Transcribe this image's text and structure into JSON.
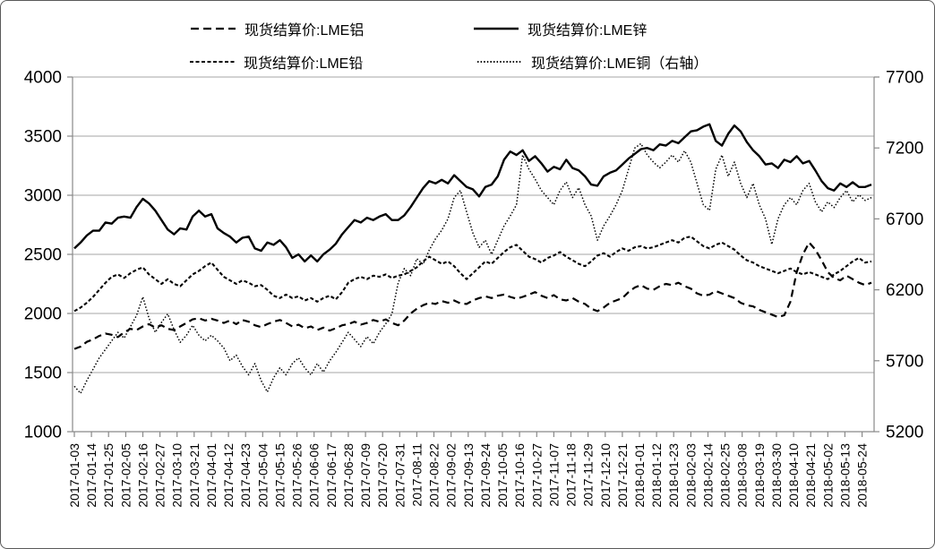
{
  "chart_data": {
    "type": "line",
    "title": "",
    "legend_position": "top",
    "grid": "horizontal",
    "x_axis": {
      "tick_interval_days": 11,
      "domain_days": [
        0,
        512
      ],
      "tick_labels": [
        "2017-01-03",
        "2017-01-14",
        "2017-01-25",
        "2017-02-05",
        "2017-02-16",
        "2017-02-27",
        "2017-03-10",
        "2017-03-21",
        "2017-04-01",
        "2017-04-12",
        "2017-04-23",
        "2017-05-04",
        "2017-05-15",
        "2017-05-26",
        "2017-06-06",
        "2017-06-17",
        "2017-06-28",
        "2017-07-09",
        "2017-07-20",
        "2017-07-31",
        "2017-08-11",
        "2017-08-22",
        "2017-09-02",
        "2017-09-13",
        "2017-09-24",
        "2017-10-05",
        "2017-10-16",
        "2017-10-27",
        "2017-11-07",
        "2017-11-18",
        "2017-11-29",
        "2017-12-10",
        "2017-12-21",
        "2018-01-01",
        "2018-01-12",
        "2018-01-23",
        "2018-02-03",
        "2018-02-14",
        "2018-02-25",
        "2018-03-08",
        "2018-03-19",
        "2018-03-30",
        "2018-04-10",
        "2018-04-21",
        "2018-05-02",
        "2018-05-13",
        "2018-05-24"
      ]
    },
    "left_axis": {
      "min": 1000,
      "max": 4000,
      "tick_step": 500,
      "ticks": [
        1000,
        1500,
        2000,
        2500,
        3000,
        3500,
        4000
      ]
    },
    "right_axis": {
      "min": 5200,
      "max": 7700,
      "tick_step": 500,
      "ticks": [
        5200,
        5700,
        6200,
        6700,
        7200,
        7700
      ]
    },
    "sample_step_days": 4,
    "series": [
      {
        "label": "现货结算价:LME铝",
        "axis": "left",
        "line_style": "long-dash",
        "color": "#000000",
        "values": [
          1700,
          1720,
          1760,
          1780,
          1810,
          1830,
          1820,
          1800,
          1840,
          1870,
          1860,
          1890,
          1910,
          1880,
          1900,
          1870,
          1860,
          1890,
          1920,
          1950,
          1960,
          1940,
          1955,
          1940,
          1920,
          1940,
          1910,
          1945,
          1930,
          1900,
          1885,
          1910,
          1930,
          1945,
          1920,
          1890,
          1905,
          1875,
          1890,
          1860,
          1880,
          1855,
          1875,
          1900,
          1910,
          1930,
          1905,
          1920,
          1945,
          1930,
          1950,
          1920,
          1900,
          1940,
          2000,
          2040,
          2070,
          2090,
          2080,
          2105,
          2090,
          2110,
          2085,
          2080,
          2110,
          2130,
          2145,
          2130,
          2150,
          2160,
          2140,
          2125,
          2140,
          2160,
          2180,
          2150,
          2130,
          2155,
          2120,
          2110,
          2130,
          2100,
          2080,
          2040,
          2020,
          2050,
          2090,
          2110,
          2130,
          2180,
          2220,
          2240,
          2210,
          2200,
          2230,
          2250,
          2240,
          2260,
          2230,
          2210,
          2170,
          2150,
          2160,
          2190,
          2170,
          2150,
          2130,
          2090,
          2070,
          2060,
          2030,
          2010,
          1990,
          1970,
          1985,
          2100,
          2350,
          2500,
          2600,
          2540,
          2450,
          2350,
          2300,
          2280,
          2320,
          2290,
          2260,
          2240,
          2260
        ]
      },
      {
        "label": "现货结算价:LME锌",
        "axis": "left",
        "line_style": "solid",
        "color": "#000000",
        "values": [
          2550,
          2600,
          2660,
          2700,
          2700,
          2770,
          2760,
          2810,
          2820,
          2810,
          2900,
          2970,
          2930,
          2870,
          2790,
          2710,
          2670,
          2720,
          2710,
          2820,
          2870,
          2820,
          2840,
          2720,
          2680,
          2650,
          2600,
          2640,
          2650,
          2550,
          2530,
          2600,
          2580,
          2620,
          2560,
          2470,
          2500,
          2440,
          2490,
          2440,
          2500,
          2540,
          2590,
          2670,
          2730,
          2790,
          2770,
          2810,
          2790,
          2820,
          2840,
          2790,
          2790,
          2830,
          2900,
          2980,
          3060,
          3120,
          3100,
          3130,
          3100,
          3170,
          3120,
          3070,
          3050,
          2990,
          3070,
          3090,
          3160,
          3300,
          3370,
          3340,
          3380,
          3290,
          3330,
          3270,
          3200,
          3240,
          3220,
          3300,
          3230,
          3210,
          3160,
          3090,
          3080,
          3160,
          3190,
          3210,
          3260,
          3310,
          3350,
          3390,
          3400,
          3380,
          3430,
          3420,
          3460,
          3440,
          3490,
          3540,
          3550,
          3580,
          3600,
          3460,
          3420,
          3520,
          3590,
          3540,
          3450,
          3380,
          3330,
          3260,
          3270,
          3230,
          3300,
          3280,
          3330,
          3270,
          3290,
          3210,
          3120,
          3060,
          3040,
          3100,
          3070,
          3110,
          3070,
          3070,
          3090
        ]
      },
      {
        "label": "现货结算价:LME铅",
        "axis": "left",
        "line_style": "dense-dash",
        "color": "#000000",
        "values": [
          2020,
          2050,
          2090,
          2140,
          2200,
          2260,
          2310,
          2330,
          2300,
          2340,
          2370,
          2390,
          2330,
          2290,
          2250,
          2290,
          2250,
          2230,
          2280,
          2330,
          2360,
          2400,
          2430,
          2370,
          2310,
          2280,
          2250,
          2280,
          2260,
          2230,
          2240,
          2200,
          2150,
          2130,
          2160,
          2130,
          2145,
          2110,
          2130,
          2100,
          2130,
          2150,
          2120,
          2180,
          2260,
          2290,
          2310,
          2290,
          2320,
          2310,
          2330,
          2300,
          2320,
          2330,
          2360,
          2390,
          2440,
          2480,
          2450,
          2420,
          2440,
          2400,
          2340,
          2290,
          2340,
          2390,
          2440,
          2420,
          2470,
          2520,
          2560,
          2580,
          2530,
          2480,
          2460,
          2430,
          2470,
          2490,
          2520,
          2480,
          2450,
          2420,
          2400,
          2440,
          2490,
          2510,
          2480,
          2520,
          2550,
          2530,
          2560,
          2570,
          2550,
          2560,
          2580,
          2600,
          2620,
          2600,
          2640,
          2650,
          2610,
          2570,
          2550,
          2580,
          2600,
          2570,
          2540,
          2490,
          2450,
          2430,
          2400,
          2380,
          2360,
          2340,
          2360,
          2380,
          2350,
          2330,
          2350,
          2330,
          2310,
          2290,
          2330,
          2360,
          2400,
          2440,
          2470,
          2430,
          2440
        ]
      },
      {
        "label": "现货结算价:LME铜（右轴）",
        "axis": "right",
        "line_style": "dotted",
        "color": "#000000",
        "values": [
          5520,
          5470,
          5560,
          5640,
          5720,
          5780,
          5840,
          5900,
          5860,
          5940,
          6020,
          6150,
          6000,
          5900,
          5970,
          6030,
          5920,
          5830,
          5880,
          5950,
          5880,
          5840,
          5880,
          5840,
          5790,
          5700,
          5740,
          5660,
          5600,
          5680,
          5560,
          5480,
          5580,
          5650,
          5600,
          5680,
          5720,
          5650,
          5600,
          5680,
          5620,
          5700,
          5760,
          5830,
          5900,
          5850,
          5800,
          5870,
          5820,
          5900,
          5960,
          6030,
          6250,
          6350,
          6300,
          6420,
          6380,
          6480,
          6560,
          6620,
          6700,
          6850,
          6900,
          6750,
          6600,
          6500,
          6550,
          6450,
          6550,
          6650,
          6720,
          6800,
          7150,
          7050,
          6980,
          6900,
          6850,
          6800,
          6900,
          6960,
          6850,
          6920,
          6800,
          6720,
          6550,
          6650,
          6720,
          6800,
          6900,
          7050,
          7200,
          7230,
          7150,
          7100,
          7060,
          7100,
          7150,
          7100,
          7180,
          7100,
          6950,
          6800,
          6760,
          7050,
          7150,
          7000,
          7100,
          6950,
          6850,
          6950,
          6800,
          6700,
          6520,
          6700,
          6800,
          6850,
          6800,
          6900,
          6950,
          6820,
          6750,
          6820,
          6780,
          6850,
          6900,
          6820,
          6870,
          6830,
          6850
        ]
      }
    ],
    "colors": {
      "series": "#000000",
      "gridline": "#a6a6a6",
      "axis_line": "#898989",
      "tick": "#898989",
      "background": "#ffffff",
      "border": "#595959",
      "text": "#000000"
    }
  }
}
